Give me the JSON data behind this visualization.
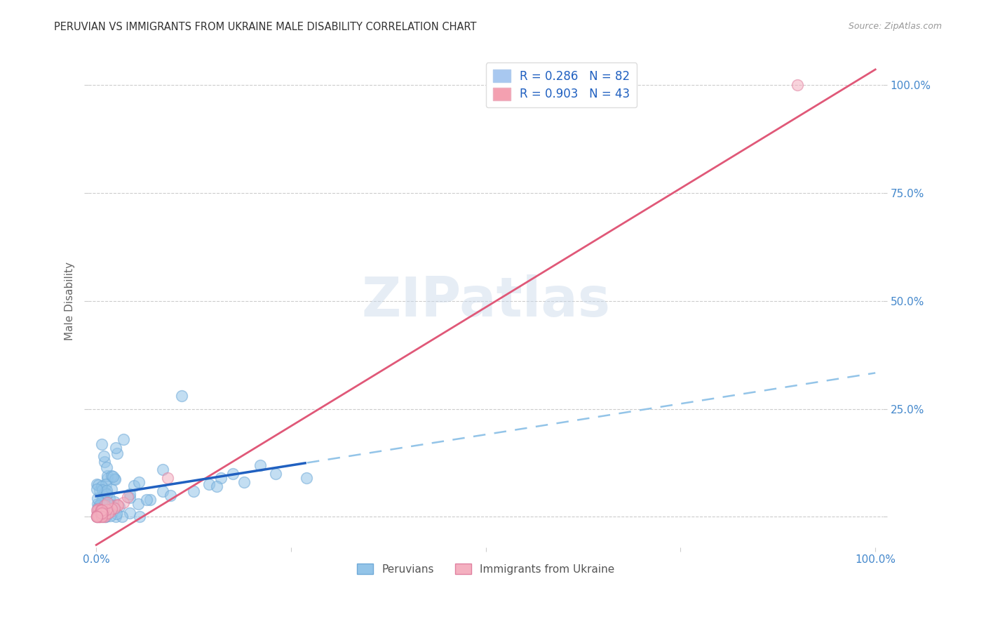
{
  "title": "PERUVIAN VS IMMIGRANTS FROM UKRAINE MALE DISABILITY CORRELATION CHART",
  "source": "Source: ZipAtlas.com",
  "ylabel": "Male Disability",
  "watermark": "ZIPatlas",
  "blue_scatter": "#93c4e8",
  "blue_edge": "#70aad8",
  "pink_scatter": "#f4b0c0",
  "pink_edge": "#e080a0",
  "trend_blue_solid": "#2060c0",
  "trend_blue_dash": "#93c4e8",
  "trend_pink": "#e05878",
  "legend1_blue_face": "#a8c8f0",
  "legend1_pink_face": "#f4a0b0",
  "r_peru": 0.286,
  "n_peru": 82,
  "r_ukraine": 0.903,
  "n_ukraine": 43,
  "grid_color": "#cccccc",
  "title_color": "#333333",
  "source_color": "#999999",
  "ylabel_color": "#666666",
  "tick_color": "#4488cc",
  "watermark_color": "#c8d8ea",
  "figsize": [
    14.06,
    8.92
  ],
  "dpi": 100,
  "xlim": [
    -0.01,
    1.01
  ],
  "ylim": [
    -0.07,
    1.07
  ]
}
